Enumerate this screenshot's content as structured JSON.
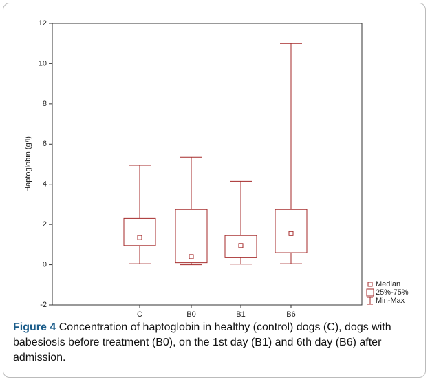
{
  "chart_data": {
    "type": "box",
    "ylabel": "Haptoglobin (g/l)",
    "categories": [
      "C",
      "B0",
      "B1",
      "B6"
    ],
    "min": [
      0.05,
      0.0,
      0.03,
      0.05
    ],
    "q1": [
      0.95,
      0.1,
      0.35,
      0.6
    ],
    "median": [
      1.35,
      0.4,
      0.95,
      1.55
    ],
    "q3": [
      2.3,
      2.75,
      1.45,
      2.75
    ],
    "max": [
      4.95,
      5.35,
      4.15,
      11.0
    ],
    "color": "#a52a2a",
    "ylim": [
      -2,
      12
    ],
    "yticks": [
      -2,
      0,
      2,
      4,
      6,
      8,
      10,
      12
    ],
    "legend": [
      "Median",
      "25%-75%",
      "Min-Max"
    ],
    "legend_position": "bottom-right"
  },
  "caption": {
    "label": "Figure 4",
    "text": "Concentration of haptoglobin in healthy (control) dogs (C), dogs with babesiosis before treatment (B0), on the 1st day (B1) and 6th day (B6) after admission."
  }
}
